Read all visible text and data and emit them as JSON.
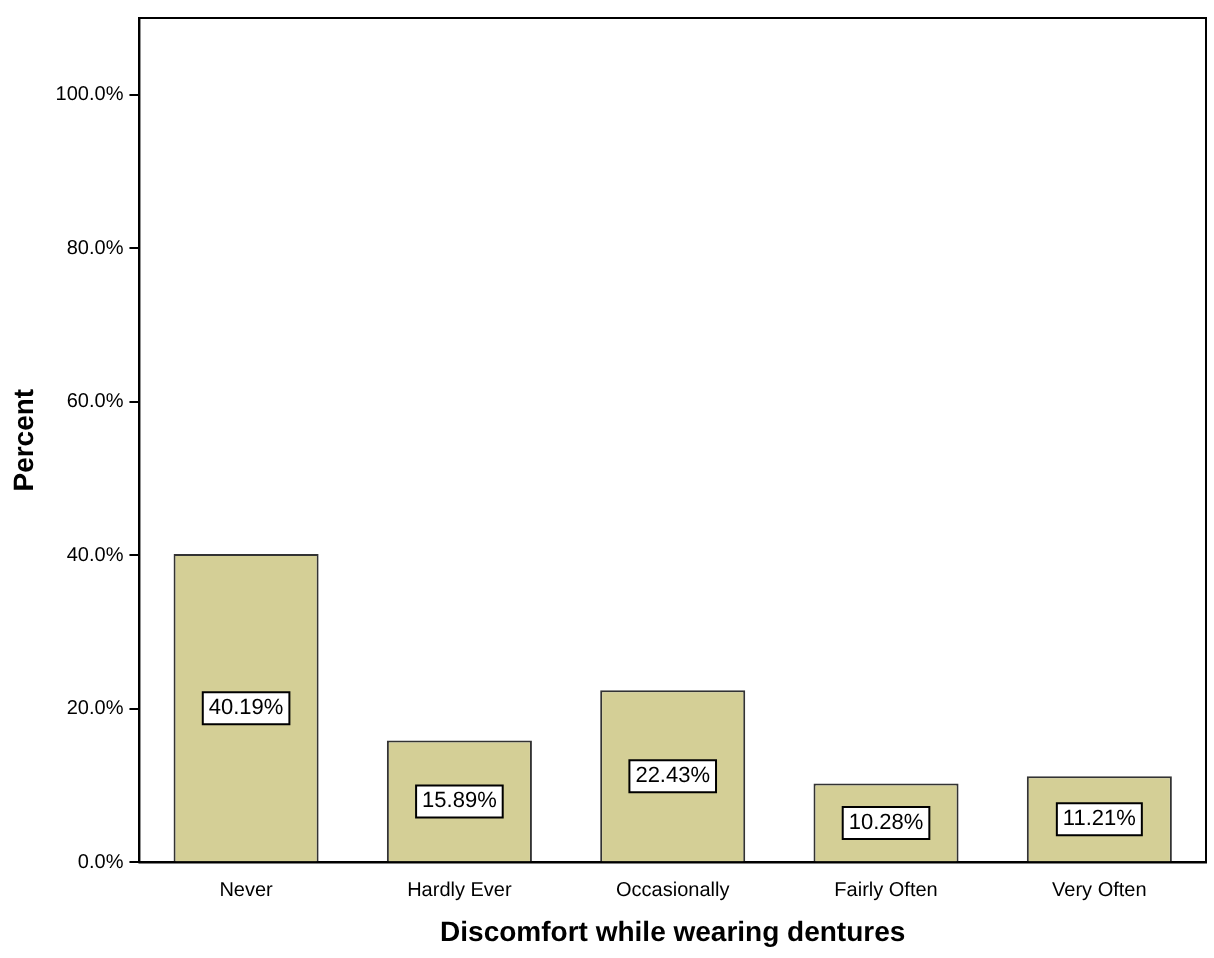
{
  "chart_data": {
    "type": "bar",
    "xlabel": "Discomfort while wearing dentures",
    "ylabel": "Percent",
    "categories": [
      "Never",
      "Hardly Ever",
      "Occasionally",
      "Fairly Often",
      "Very Often"
    ],
    "values": [
      40.19,
      15.89,
      22.43,
      10.28,
      11.21
    ],
    "value_labels": [
      "40.19%",
      "15.89%",
      "22.43%",
      "10.28%",
      "11.21%"
    ],
    "color": "#d4cf96",
    "ylim": [
      0,
      110
    ],
    "yticks": [
      {
        "value": 0,
        "label": "0.0%"
      },
      {
        "value": 20,
        "label": "20.0%"
      },
      {
        "value": 40,
        "label": "40.0%"
      },
      {
        "value": 60,
        "label": "60.0%"
      },
      {
        "value": 80,
        "label": "80.0%"
      },
      {
        "value": 100,
        "label": "100.0%"
      }
    ],
    "grid": false,
    "legend": false
  }
}
